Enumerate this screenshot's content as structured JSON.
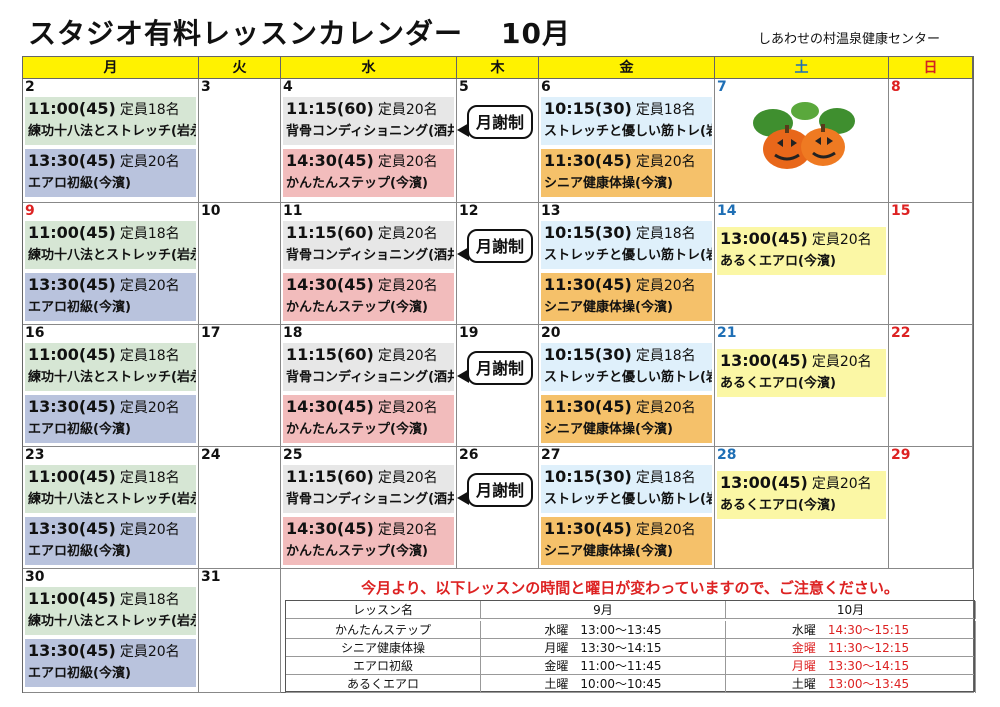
{
  "title": "スタジオ有料レッスンカレンダー",
  "month": "10月",
  "organization": "しあわせの村温泉健康センター",
  "weekdays": [
    "月",
    "火",
    "水",
    "木",
    "金",
    "土",
    "日"
  ],
  "bubble_text": "月謝制",
  "lessons": {
    "mon1": {
      "time": "11:00(45)",
      "cap": "定員18名",
      "name": "練功十八法とストレッチ(岩永)"
    },
    "mon2": {
      "time": "13:30(45)",
      "cap": "定員20名",
      "name": "エアロ初級(今濱)"
    },
    "wed1": {
      "time": "11:15(60)",
      "cap": "定員20名",
      "name": "背骨コンディショニング(酒井)"
    },
    "wed2": {
      "time": "14:30(45)",
      "cap": "定員20名",
      "name": "かんたんステップ(今濱)"
    },
    "fri1": {
      "time": "10:15(30)",
      "cap": "定員18名",
      "name": "ストレッチと優しい筋トレ(岩永)"
    },
    "fri2": {
      "time": "11:30(45)",
      "cap": "定員20名",
      "name": "シニア健康体操(今濱)"
    },
    "sat1": {
      "time": "13:00(45)",
      "cap": "定員20名",
      "name": "あるくエアロ(今濱)"
    }
  },
  "weeks": [
    [
      "2",
      "3",
      "4",
      "5",
      "6",
      "7",
      "8"
    ],
    [
      "9",
      "10",
      "11",
      "12",
      "13",
      "14",
      "15"
    ],
    [
      "16",
      "17",
      "18",
      "19",
      "20",
      "21",
      "22"
    ],
    [
      "23",
      "24",
      "25",
      "26",
      "27",
      "28",
      "29"
    ],
    [
      "30",
      "31"
    ]
  ],
  "notice": "今月より、以下レッスンの時間と曜日が変わっていますので、ご注意ください。",
  "change_table": {
    "headers": [
      "レッスン名",
      "9月",
      "10月"
    ],
    "rows": [
      {
        "name": "かんたんステップ",
        "sep_day": "水曜",
        "sep_time": "13:00～13:45",
        "oct_day": "水曜",
        "oct_time": "14:30～15:15"
      },
      {
        "name": "シニア健康体操",
        "sep_day": "月曜",
        "sep_time": "13:30～14:15",
        "oct_day": "金曜",
        "oct_time": "11:30～12:15"
      },
      {
        "name": "エアロ初級",
        "sep_day": "金曜",
        "sep_time": "11:00～11:45",
        "oct_day": "月曜",
        "oct_time": "13:30～14:15"
      },
      {
        "name": "あるくエアロ",
        "sep_day": "土曜",
        "sep_time": "10:00～10:45",
        "oct_day": "土曜",
        "oct_time": "13:00～13:45"
      }
    ]
  },
  "colors": {
    "header_bg": "#fff200",
    "saturday": "#1f6fb5",
    "sunday": "#d22222",
    "alert": "#d22222"
  }
}
